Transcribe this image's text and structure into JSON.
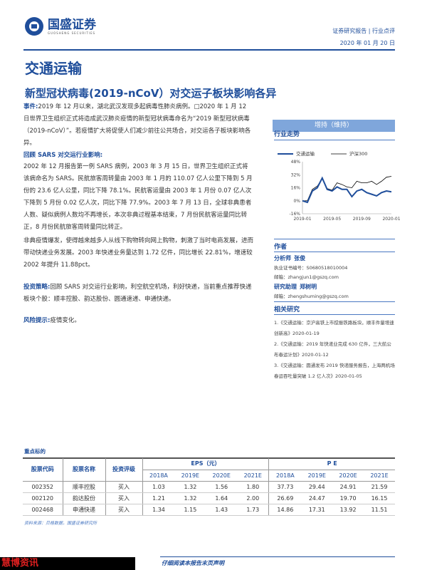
{
  "header": {
    "logo_cn": "国盛证券",
    "logo_en": "GUOSHENG SECURITIES",
    "report_type": "证券研究报告 | 行业点评",
    "date": "2020 年 01 月 20 日"
  },
  "industry": "交通运输",
  "headline": "新型冠状病毒(2019-nCoV）对交运子板块影响各异",
  "event": {
    "label": "事件:",
    "text": "2019 年 12 月以来，湖北武汉发现多起病毒性肺炎病例。□2020 年 1 月 12 日世界卫生组织正式将造成武汉肺炎疫情的新型冠状病毒命名为“2019 新型冠状病毒（2019-nCoV）”。若疫情扩大将促使人们减少前往公共场合，对交运各子板块影响各异。"
  },
  "sars": {
    "label": "回顾 SARS 对交运行业影响:",
    "text": "2002 年 12 月报告第一例 SARS 病例，2003 年 3 月 15 日，世界卫生组织正式将该病命名为 SARS。民航旅客周转量由 2003 年 1 月的 110.07 亿人公里下降到 5 月份的 23.6 亿人公里，同比下降 78.1%。民航客运量由 2003 年 1 月份 0.07 亿人次下降到 5 月份 0.02 亿人次，同比下降 77.9%。2003 年 7 月 13 日，全球非典患者人数、疑似病例人数均不再增长，本次非典过程基本结束，7 月份民航客运量同比转正，8 月份民航旅客周转量同比转正。"
  },
  "ecommerce": "非典疫情爆发，使得越来越多人从线下购物转向网上购物，刺激了当时电商发展，进而带动快递业务发展。2003 年快递业务量达到 1.72 亿件，同比增长 22.81%，增速较 2002 年提升 11.88pct。",
  "strategy": {
    "label": "投资策略:",
    "text": "回顾 SARS 对交运行业影响，利空航空机场，利好快递，当前重点推荐快递板块个股：顺丰控股、韵达股份、圆通速递、申通快递。"
  },
  "risk": {
    "label": "风险提示:",
    "text": "疫情变化。"
  },
  "rating": "增持（维持）",
  "trend_title": "行业走势",
  "chart_data": {
    "type": "line",
    "series": [
      {
        "name": "交通运输",
        "color": "#1f4e9b",
        "values": [
          0,
          -2,
          12,
          16,
          28,
          14,
          12,
          17,
          14,
          14,
          5,
          12,
          14,
          10,
          8,
          6,
          10,
          12,
          11
        ]
      },
      {
        "name": "沪深300",
        "color": "#000000",
        "values": [
          0,
          0,
          14,
          18,
          27,
          15,
          13,
          22,
          20,
          17,
          16,
          24,
          22,
          22,
          24,
          20,
          24,
          29,
          30
        ]
      }
    ],
    "x_start": "2019-01",
    "x_end": "2020-01",
    "xticks": [
      "2019-01",
      "2019-05",
      "2019-09",
      "2020-01"
    ],
    "yticks": [
      "48%",
      "32%",
      "16%",
      "0%",
      "-16%"
    ],
    "ylim": [
      -16,
      48
    ],
    "legend": "top"
  },
  "author_title": "作者",
  "authors": [
    {
      "role": "分析师",
      "name": "张俊",
      "lines": [
        "执业证书编号：S0680518010004",
        "邮箱：zhangjun1@gszq.com"
      ]
    },
    {
      "role": "研究助理",
      "name": "郑树明",
      "lines": [
        "邮箱：zhengshuming@gszq.com"
      ]
    }
  ],
  "related_title": "相关研究",
  "related": [
    "1.《交通运输：京沪高铁上市搅振铁路板块，顺丰件量增速创新高》2020-01-19",
    "2.《交通运输：2019 年快递业完成 630 亿件，三大航公布春运计划》2020-01-12",
    "3.《交通运输：圆通发布 2019 快递服务报告，上海两机场春运吞吐量突破 1.2 亿人次》2020-01-05"
  ],
  "table": {
    "title": "重点标的",
    "h_code": "股票代码",
    "h_name": "股票名称",
    "h_rating": "投资评级",
    "h_eps": "EPS（元）",
    "h_pe": "P E",
    "years": [
      "2018A",
      "2019E",
      "2020E",
      "2021E"
    ],
    "rows": [
      [
        "002352",
        "顺丰控股",
        "买入",
        "1.03",
        "1.32",
        "1.56",
        "1.80",
        "37.73",
        "29.44",
        "24.91",
        "21.59"
      ],
      [
        "002120",
        "韵达股份",
        "买入",
        "1.21",
        "1.32",
        "1.64",
        "2.00",
        "26.69",
        "24.47",
        "19.70",
        "16.15"
      ],
      [
        "002468",
        "申通快递",
        "买入",
        "1.34",
        "1.15",
        "1.43",
        "1.73",
        "14.86",
        "17.31",
        "13.92",
        "11.51"
      ]
    ],
    "source": "资料来源：贝格数据，国盛证券研究所"
  },
  "watermark": "慧博资讯",
  "footer": "仔细阅读本报告末页声明"
}
